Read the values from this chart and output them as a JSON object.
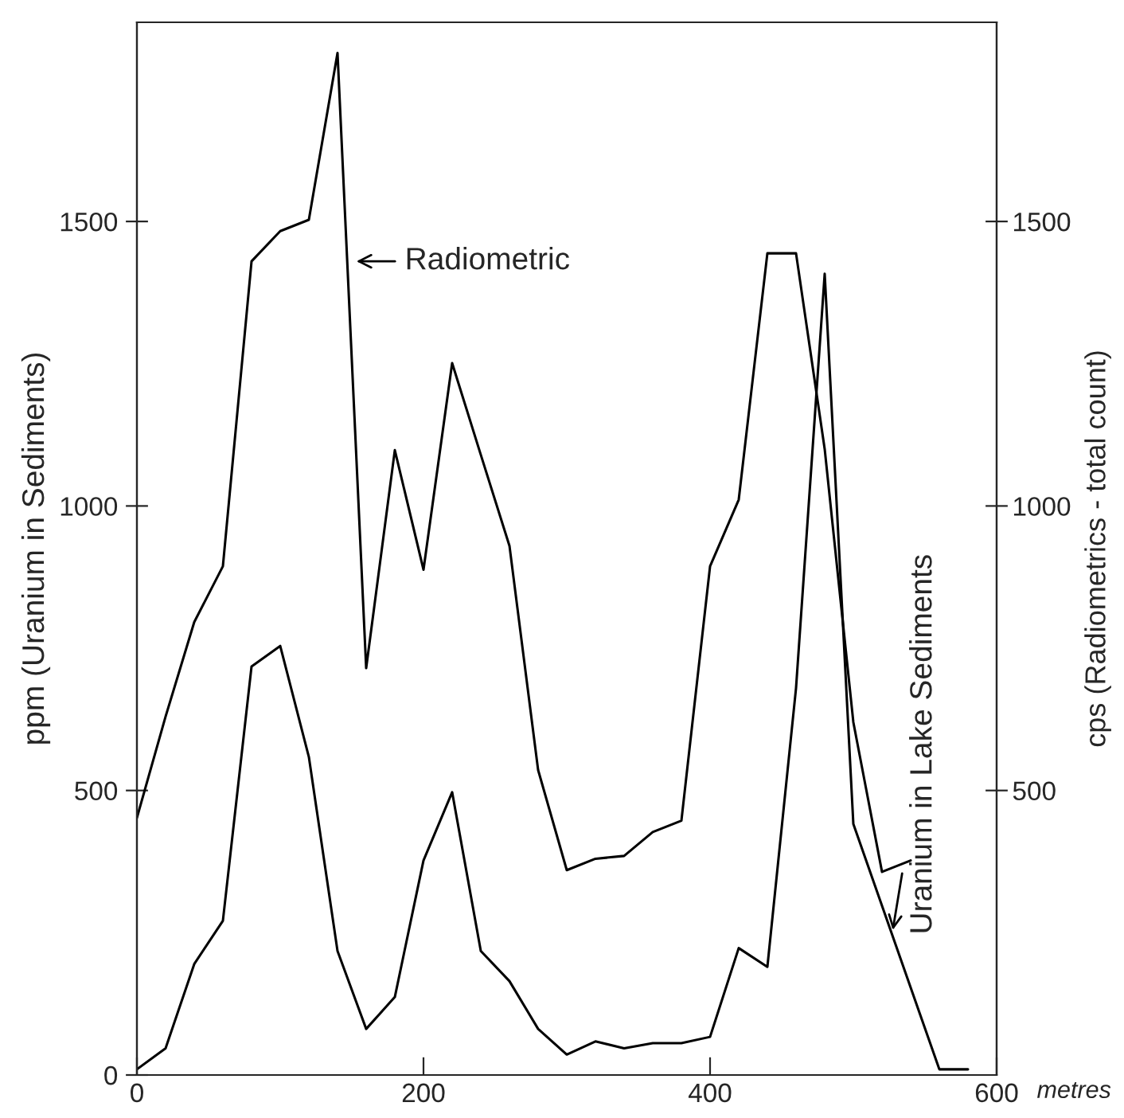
{
  "chart_data": {
    "type": "line",
    "xlabel": "metres",
    "ylabel": "ppm (Uranium in Sediments)",
    "y2label": "cps (Radiometrics - total count)",
    "xlim": [
      0,
      600
    ],
    "xticks": [
      0,
      200,
      400,
      600
    ],
    "ylim": [
      0,
      1850
    ],
    "yticks": [
      0,
      500,
      1000,
      1500
    ],
    "y2lim": [
      0,
      1850
    ],
    "y2ticks": [
      500,
      1000,
      1500
    ],
    "grid": false,
    "legend": false,
    "marker": "none",
    "line_style": "solid",
    "series": [
      {
        "color": "#000000",
        "x": [
          0,
          20,
          40,
          60,
          80,
          100,
          120,
          140,
          160,
          180,
          200,
          220,
          240,
          260,
          280,
          300,
          320,
          340,
          360,
          380,
          400,
          420,
          440,
          460,
          480,
          500,
          520,
          540
        ],
        "values": [
          452,
          630,
          796,
          894,
          1430,
          1483,
          1503,
          1796,
          715,
          1098,
          888,
          1251,
          1090,
          930,
          536,
          360,
          380,
          385,
          427,
          447,
          894,
          1011,
          1444,
          1444,
          1100,
          620,
          357,
          377
        ]
      },
      {
        "color": "#000000",
        "x": [
          0,
          20,
          40,
          60,
          80,
          100,
          120,
          140,
          160,
          180,
          200,
          220,
          240,
          260,
          280,
          300,
          320,
          340,
          360,
          380,
          400,
          420,
          440,
          460,
          480,
          500,
          560,
          580
        ],
        "values": [
          10,
          47,
          195,
          271,
          718,
          754,
          559,
          218,
          81,
          137,
          377,
          497,
          218,
          165,
          81,
          36,
          59,
          47,
          56,
          56,
          67,
          223,
          190,
          680,
          1408,
          441,
          10,
          10
        ]
      }
    ],
    "annotations": [
      {
        "text": "Radiometric",
        "x": 147,
        "y": 1430
      },
      {
        "text": "Uranium in Lake Sediments",
        "x": 527,
        "y": 247
      }
    ]
  }
}
